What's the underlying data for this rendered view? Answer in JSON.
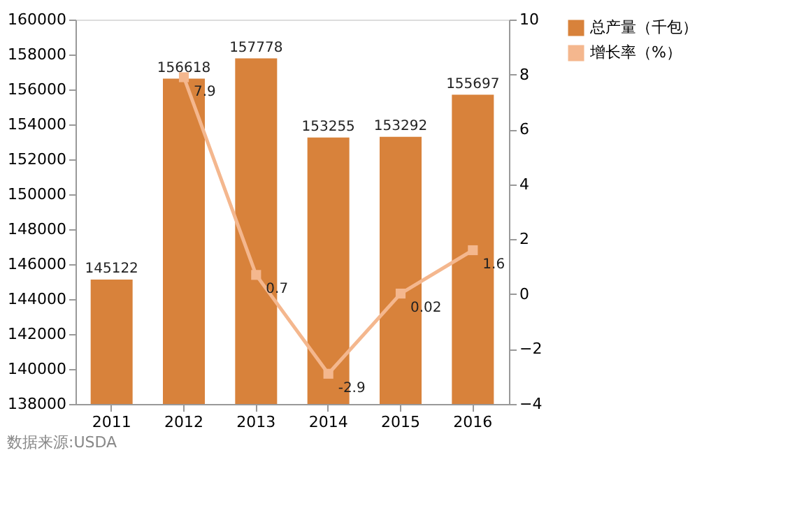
{
  "chart_data": {
    "type": "bar",
    "categories": [
      "2011",
      "2012",
      "2013",
      "2014",
      "2015",
      "2016"
    ],
    "series": [
      {
        "name": "总产量（千包）",
        "color": "#d8823b",
        "values": [
          145122,
          156618,
          157778,
          153255,
          153292,
          155697
        ]
      },
      {
        "name": "增长率（%）",
        "type": "line",
        "axis": "y2",
        "color": "#f4b78e",
        "marker": "square",
        "values": [
          null,
          7.9,
          0.7,
          -2.9,
          0.02,
          1.6
        ]
      }
    ],
    "ylim": [
      138000,
      160000
    ],
    "yticks": [
      138000,
      140000,
      142000,
      144000,
      146000,
      148000,
      150000,
      152000,
      154000,
      156000,
      158000,
      160000
    ],
    "y2lim": [
      -4,
      10
    ],
    "y2ticks": [
      -4,
      -2,
      0,
      2,
      4,
      6,
      8,
      10
    ],
    "data_labels": true,
    "legend": "right",
    "grid": false,
    "annotations": [
      "数据来源:USDA"
    ]
  }
}
